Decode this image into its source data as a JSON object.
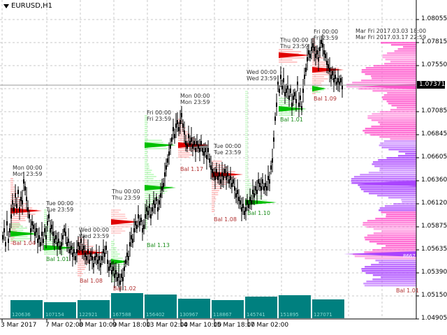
{
  "window": {
    "symbol_title": "EURUSD,H1",
    "symbol_icon": "triangle-down-icon"
  },
  "price_axis": {
    "labels": [
      "1.08055",
      "1.07815",
      "1.07550",
      "1.07085",
      "1.06845",
      "1.06605",
      "1.06360",
      "1.06120",
      "1.05875",
      "1.05635",
      "1.05390",
      "1.05150",
      "1.04905"
    ],
    "current_price": "1.07371"
  },
  "time_axis": {
    "labels": [
      "3 Mar 2017",
      "7 Mar 02:00",
      "8 Mar 10:00",
      "9 Mar 18:00",
      "13 Mar 02:00",
      "14 Mar 10:00",
      "15 Mar 18:00",
      "17 Mar 02:00"
    ]
  },
  "session_labels": [
    {
      "text": "Mon 00:00\nMon 23:59"
    },
    {
      "text": "Tue 00:00\nTue 23:59"
    },
    {
      "text": "Wed 00:00\nWed 23:59"
    },
    {
      "text": "Thu 00:00\nThu 23:59"
    },
    {
      "text": "Fri 00:00\nFri 23:59"
    },
    {
      "text": "Mon 00:00\nMon 23:59"
    },
    {
      "text": "Tue 00:00\nTue 23:59"
    },
    {
      "text": "Wed 00:00\nWed 23:59"
    },
    {
      "text": "Thu 00:00\nThu 23:59"
    },
    {
      "text": "Fri 00:00\nFri 23:59"
    },
    {
      "text": "Mar Fri 2017.03.03 18:00\nMar Fri 2017.03.17 22:59"
    }
  ],
  "balance_labels": [
    {
      "text": "Bal 1.04",
      "color": "red"
    },
    {
      "text": "Bal 1.01",
      "color": "green"
    },
    {
      "text": "Bal 1.08",
      "color": "red"
    },
    {
      "text": "Bal 1.02",
      "color": "red"
    },
    {
      "text": "Bal 1.13",
      "color": "green"
    },
    {
      "text": "Bal 1.17",
      "color": "red"
    },
    {
      "text": "Bal 1.08",
      "color": "red"
    },
    {
      "text": "Bal 1.10",
      "color": "green"
    },
    {
      "text": "Bal 1.01",
      "color": "green"
    },
    {
      "text": "Bal 1.09",
      "color": "red"
    },
    {
      "text": "Bal 1.01",
      "color": "red"
    }
  ],
  "volume_bars": [
    {
      "value": "120636"
    },
    {
      "value": "107154"
    },
    {
      "value": "122921"
    },
    {
      "value": "167588"
    },
    {
      "value": "156402"
    },
    {
      "value": "130967"
    },
    {
      "value": "118867"
    },
    {
      "value": "145741"
    },
    {
      "value": "151895"
    },
    {
      "value": "127071"
    }
  ],
  "profile_badge": "8667",
  "colors": {
    "background": "#ffffff",
    "grid": "#c8c8c8",
    "bull": "#00c000",
    "bear": "#e00000",
    "volume": "#00807f",
    "profile_pink": "#ff55cc",
    "profile_violet": "#aa44ff"
  }
}
